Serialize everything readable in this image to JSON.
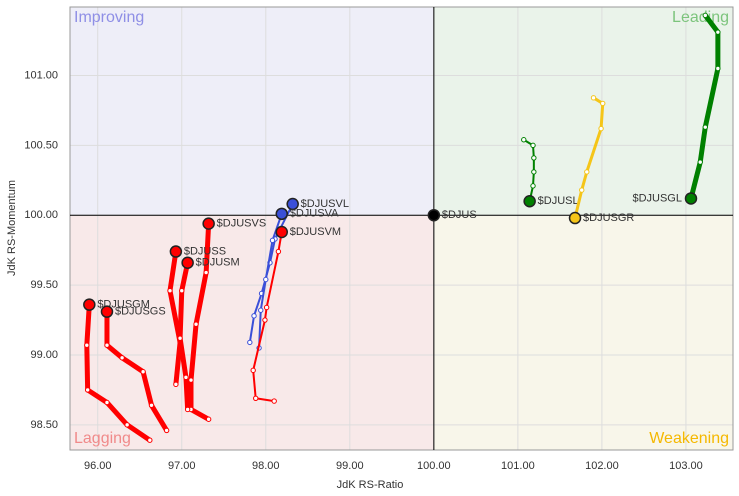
{
  "chart_data": {
    "type": "rrg",
    "x_label": "JdK RS-Ratio",
    "y_label": "JdK RS-Momentum",
    "quadrants": [
      {
        "name": "Improving",
        "color": "#8f8fe6",
        "fill": "#eeeef8"
      },
      {
        "name": "Leading",
        "color": "#7cc47c",
        "fill": "#eaf3ea"
      },
      {
        "name": "Lagging",
        "color": "#f08a8a",
        "fill": "#f8e9e9"
      },
      {
        "name": "Weakening",
        "color": "#f5b800",
        "fill": "#f8f6ea"
      }
    ],
    "center": {
      "x": 100,
      "y": 100
    },
    "xlim": [
      95.67,
      103.56
    ],
    "ylim": [
      98.32,
      101.49
    ],
    "xticks": [
      {
        "value": 96,
        "label": "96.00"
      },
      {
        "value": 97,
        "label": "97.00"
      },
      {
        "value": 98,
        "label": "98.00"
      },
      {
        "value": 99,
        "label": "99.00"
      },
      {
        "value": 100,
        "label": "100.00"
      },
      {
        "value": 101,
        "label": "101.00"
      },
      {
        "value": 102,
        "label": "102.00"
      },
      {
        "value": 103,
        "label": "103.00"
      }
    ],
    "yticks": [
      {
        "value": 98.5,
        "label": "98.50"
      },
      {
        "value": 99,
        "label": "99.00"
      },
      {
        "value": 99.5,
        "label": "99.50"
      },
      {
        "value": 100,
        "label": "100.00"
      },
      {
        "value": 100.5,
        "label": "100.50"
      },
      {
        "value": 101,
        "label": "101.00"
      }
    ],
    "grid": true,
    "series": [
      {
        "name": "$DJUSGL",
        "color": "#008000",
        "width": 5,
        "x": [
          103.23,
          103.38,
          103.38,
          103.23,
          103.17,
          103.06
        ],
        "values": [
          101.43,
          101.31,
          101.05,
          100.63,
          100.38,
          100.12
        ]
      },
      {
        "name": "$DJUSL",
        "color": "#008000",
        "width": 2,
        "x": [
          101.07,
          101.18,
          101.19,
          101.19,
          101.18,
          101.14
        ],
        "values": [
          100.54,
          100.5,
          100.41,
          100.31,
          100.21,
          100.1
        ]
      },
      {
        "name": "$DJUSGR",
        "color": "#f5c518",
        "width": 3,
        "x": [
          101.9,
          102.01,
          101.99,
          101.82,
          101.76,
          101.68
        ],
        "values": [
          100.84,
          100.8,
          100.62,
          100.31,
          100.18,
          99.98
        ]
      },
      {
        "name": "$DJUS",
        "color": "#000000",
        "width": 2,
        "x": [
          100
        ],
        "values": [
          100
        ]
      },
      {
        "name": "$DJUSVL",
        "color": "#3a4fd8",
        "width": 2,
        "x": [
          97.81,
          97.86,
          97.95,
          98.05,
          98.11,
          98.32
        ],
        "values": [
          99.09,
          99.28,
          99.44,
          99.66,
          99.83,
          100.08
        ]
      },
      {
        "name": "$DJUSVA",
        "color": "#3a4fd8",
        "width": 2,
        "x": [
          97.92,
          97.94,
          98.0,
          98.08,
          98.19
        ],
        "values": [
          99.05,
          99.32,
          99.54,
          99.82,
          100.01
        ]
      },
      {
        "name": "$DJUSVM",
        "color": "#ff0000",
        "width": 2,
        "x": [
          98.1,
          97.88,
          97.85,
          97.99,
          98.01,
          98.15,
          98.19
        ],
        "values": [
          98.67,
          98.69,
          98.89,
          99.25,
          99.34,
          99.74,
          99.88
        ]
      },
      {
        "name": "$DJUSVS",
        "color": "#ff0000",
        "width": 5,
        "x": [
          97.32,
          97.11,
          97.11,
          97.17,
          97.29,
          97.32
        ],
        "values": [
          98.54,
          98.61,
          98.82,
          99.22,
          99.59,
          99.94
        ]
      },
      {
        "name": "$DJUSS",
        "color": "#ff0000",
        "width": 5,
        "x": [
          96.93,
          96.98,
          96.86,
          96.93
        ],
        "values": [
          98.79,
          99.09,
          99.46,
          99.74
        ]
      },
      {
        "name": "$DJUSM",
        "color": "#ff0000",
        "width": 5,
        "x": [
          97.07,
          97.05,
          96.98,
          97.0,
          97.07
        ],
        "values": [
          98.61,
          98.84,
          99.12,
          99.46,
          99.66
        ]
      },
      {
        "name": "$DJUSGM",
        "color": "#ff0000",
        "width": 5,
        "x": [
          96.62,
          96.35,
          96.11,
          95.88,
          95.87,
          95.9
        ],
        "values": [
          98.39,
          98.5,
          98.66,
          98.75,
          99.07,
          99.36
        ]
      },
      {
        "name": "$DJUSGS",
        "color": "#ff0000",
        "width": 5,
        "x": [
          96.82,
          96.64,
          96.54,
          96.29,
          96.11,
          96.11
        ],
        "values": [
          98.46,
          98.64,
          98.88,
          98.98,
          99.07,
          99.31
        ]
      }
    ]
  }
}
